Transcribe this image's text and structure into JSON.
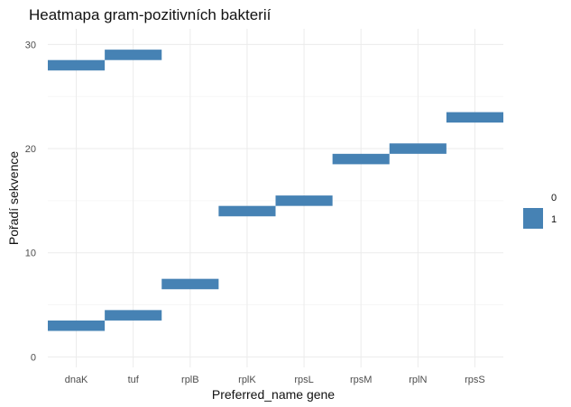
{
  "chart_data": {
    "type": "heatmap",
    "title": "Heatmapa gram-pozitivních bakterií",
    "xlabel": "Preferred_name gene",
    "ylabel": "Pořadí sekvence",
    "categories": [
      "dnaK",
      "tuf",
      "rplB",
      "rplK",
      "rpsL",
      "rpsM",
      "rplN",
      "rpsS"
    ],
    "yticks": [
      0,
      10,
      20,
      30
    ],
    "ylim": [
      -1,
      31.5
    ],
    "cells": [
      {
        "x": "dnaK",
        "y": 3,
        "value": 1
      },
      {
        "x": "dnaK",
        "y": 28,
        "value": 1
      },
      {
        "x": "tuf",
        "y": 4,
        "value": 1
      },
      {
        "x": "tuf",
        "y": 29,
        "value": 1
      },
      {
        "x": "rplB",
        "y": 7,
        "value": 1
      },
      {
        "x": "rplK",
        "y": 14,
        "value": 1
      },
      {
        "x": "rpsL",
        "y": 15,
        "value": 1
      },
      {
        "x": "rpsM",
        "y": 19,
        "value": 1
      },
      {
        "x": "rplN",
        "y": 20,
        "value": 1
      },
      {
        "x": "rpsS",
        "y": 23,
        "value": 1
      }
    ],
    "legend": {
      "placement": "right",
      "entries": [
        {
          "label": "0",
          "color": null
        },
        {
          "label": "1",
          "color": "#4682b4"
        }
      ]
    },
    "grid": true,
    "colors": {
      "fill": "#4682b4",
      "grid_major": "#ebebeb",
      "grid_minor": "#f5f5f5"
    }
  }
}
